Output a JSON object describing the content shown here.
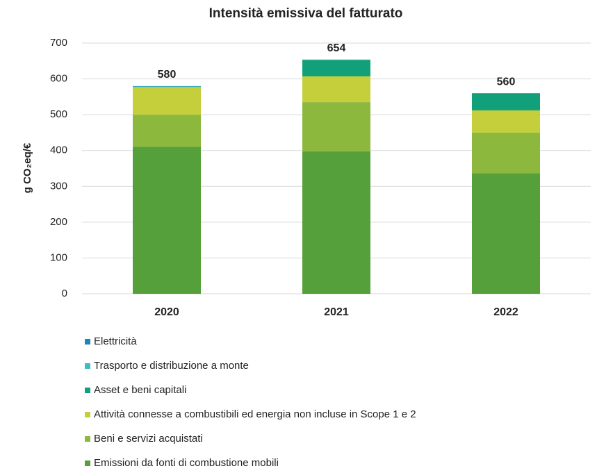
{
  "chart_data": {
    "type": "stacked_bar",
    "title": "Intensità emissiva del fatturato",
    "y_label": "g CO₂eq/€",
    "categories": [
      "2020",
      "2021",
      "2022"
    ],
    "series": [
      {
        "name": "Emissioni da fonti di combustione mobili",
        "color": "#56a03c",
        "values": [
          410,
          398,
          337
        ]
      },
      {
        "name": "Beni e servizi acquistati",
        "color": "#8cb83e",
        "values": [
          90,
          137,
          113
        ]
      },
      {
        "name": "Attività connesse a combustibili ed energia non incluse in Scope 1 e 2",
        "color": "#c5cf3c",
        "values": [
          77,
          72,
          62
        ]
      },
      {
        "name": "Asset e beni capitali",
        "color": "#12a07a",
        "values": [
          0,
          46,
          48
        ]
      },
      {
        "name": "Trasporto e distribuzione a monte",
        "color": "#3bbcc0",
        "values": [
          2,
          1,
          0
        ]
      },
      {
        "name": "Elettricità",
        "color": "#1a87b8",
        "values": [
          1,
          0,
          0
        ]
      }
    ],
    "totals": [
      580,
      654,
      560
    ],
    "ylim": [
      0,
      700
    ],
    "yticks": [
      0,
      100,
      200,
      300,
      400,
      500,
      600,
      700
    ],
    "grid": true
  }
}
